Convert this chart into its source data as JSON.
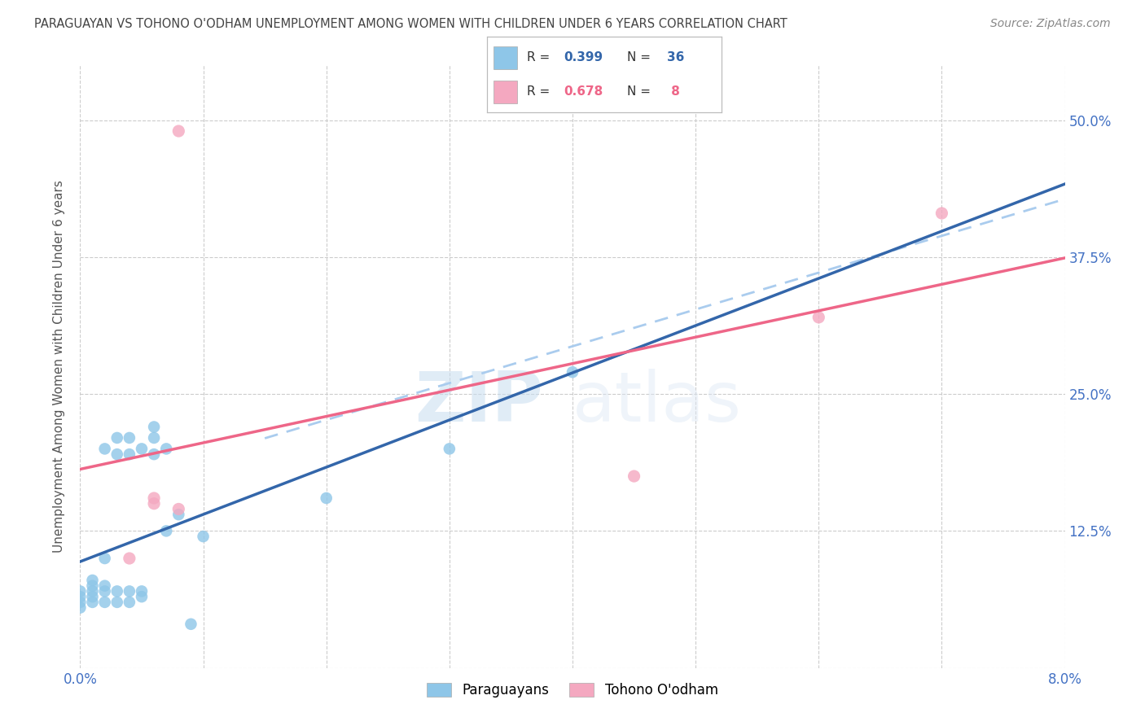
{
  "title": "PARAGUAYAN VS TOHONO O'ODHAM UNEMPLOYMENT AMONG WOMEN WITH CHILDREN UNDER 6 YEARS CORRELATION CHART",
  "source": "Source: ZipAtlas.com",
  "ylabel": "Unemployment Among Women with Children Under 6 years",
  "xlim": [
    0.0,
    0.08
  ],
  "ylim": [
    0.0,
    0.55
  ],
  "yticks": [
    0.0,
    0.125,
    0.25,
    0.375,
    0.5
  ],
  "ytick_labels": [
    "",
    "12.5%",
    "25.0%",
    "37.5%",
    "50.0%"
  ],
  "paraguayan_color": "#8ec6e8",
  "tohono_color": "#f4a8c0",
  "line_paraguayan_color": "#3366aa",
  "line_tohono_color": "#ee6688",
  "line_dashed_color": "#aaccee",
  "R_paraguayan": 0.399,
  "N_paraguayan": 36,
  "R_tohono": 0.678,
  "N_tohono": 8,
  "watermark_zip": "ZIP",
  "watermark_atlas": "atlas",
  "background_color": "#ffffff",
  "grid_color": "#cccccc",
  "tick_color": "#4472c4",
  "title_color": "#444444",
  "source_color": "#888888",
  "par_pts_x": [
    0.0,
    0.0,
    0.0,
    0.0,
    0.001,
    0.001,
    0.001,
    0.001,
    0.001,
    0.002,
    0.002,
    0.002,
    0.002,
    0.002,
    0.003,
    0.003,
    0.003,
    0.003,
    0.004,
    0.004,
    0.004,
    0.004,
    0.005,
    0.005,
    0.005,
    0.006,
    0.006,
    0.006,
    0.007,
    0.007,
    0.008,
    0.009,
    0.01,
    0.02,
    0.03,
    0.04
  ],
  "par_pts_y": [
    0.055,
    0.06,
    0.065,
    0.07,
    0.06,
    0.065,
    0.07,
    0.075,
    0.08,
    0.06,
    0.07,
    0.075,
    0.1,
    0.2,
    0.06,
    0.07,
    0.195,
    0.21,
    0.06,
    0.07,
    0.195,
    0.21,
    0.065,
    0.07,
    0.2,
    0.195,
    0.21,
    0.22,
    0.125,
    0.2,
    0.14,
    0.04,
    0.12,
    0.155,
    0.2,
    0.27
  ],
  "toh_pts_x": [
    0.004,
    0.006,
    0.006,
    0.008,
    0.045,
    0.06,
    0.07,
    0.008
  ],
  "toh_pts_y": [
    0.1,
    0.15,
    0.155,
    0.145,
    0.175,
    0.32,
    0.415,
    0.49
  ]
}
